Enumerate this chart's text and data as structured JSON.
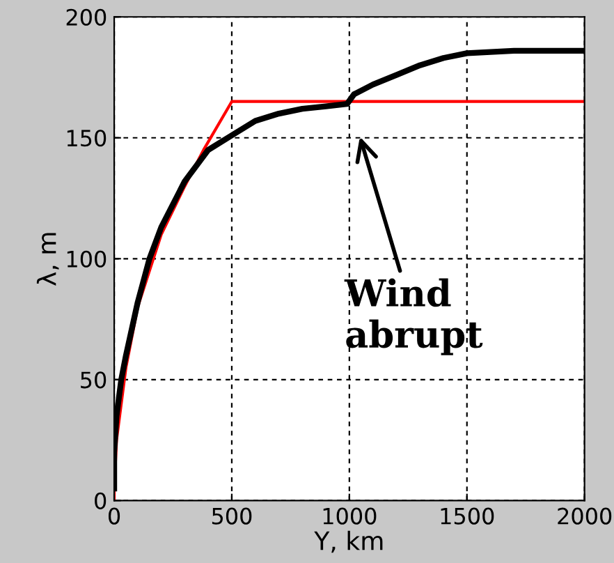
{
  "chart_data": {
    "type": "line",
    "xlabel": "Y, km",
    "ylabel": "λ, m",
    "xlim": [
      0,
      2000
    ],
    "ylim": [
      0,
      200
    ],
    "xticks": [
      0,
      500,
      1000,
      1500,
      2000
    ],
    "yticks": [
      0,
      50,
      100,
      150,
      200
    ],
    "grid": true,
    "line_style": "solid",
    "legend": false,
    "series": [
      {
        "color": "#ff0000",
        "x": [
          0,
          0,
          10,
          50,
          100,
          200,
          300,
          380,
          500,
          2000
        ],
        "values": [
          0,
          5,
          25,
          55,
          80,
          110,
          130,
          145,
          165,
          165
        ]
      },
      {
        "color": "#000000",
        "x": [
          0,
          0,
          10,
          30,
          50,
          100,
          150,
          200,
          300,
          400,
          500,
          600,
          700,
          800,
          900,
          990,
          1020,
          1100,
          1200,
          1300,
          1400,
          1500,
          1700,
          2000
        ],
        "values": [
          5,
          20,
          35,
          50,
          60,
          82,
          100,
          113,
          132,
          145,
          151,
          157,
          160,
          162,
          163,
          164,
          168,
          172,
          176,
          180,
          183,
          185,
          186,
          186
        ]
      }
    ],
    "annotations": [
      "Wind\nabrupt"
    ]
  }
}
